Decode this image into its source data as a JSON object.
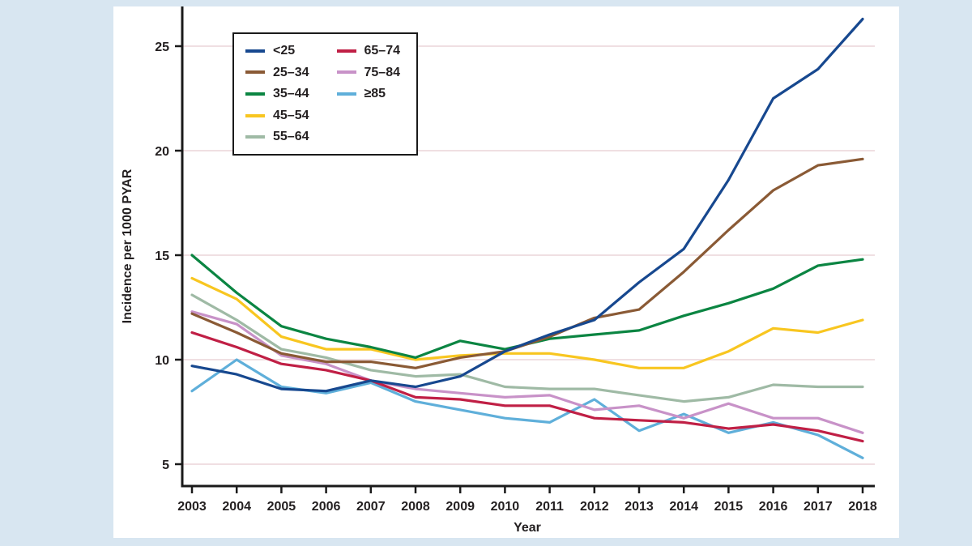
{
  "colors": {
    "background": "#d8e6f1",
    "figure_bg": "#ffffff",
    "gridline": "#f0dfe2",
    "axis": "#1a1a1a",
    "text": "#231f20"
  },
  "chart_data": {
    "type": "line",
    "title": "",
    "xlabel": "Year",
    "ylabel": "Incidence per 1000 PYAR",
    "x": [
      2003,
      2004,
      2005,
      2006,
      2007,
      2008,
      2009,
      2010,
      2011,
      2012,
      2013,
      2014,
      2015,
      2016,
      2017,
      2018
    ],
    "ylim": [
      5,
      26.5
    ],
    "yticks": [
      5,
      10,
      15,
      20,
      25
    ],
    "grid": "horizontal",
    "legend_position": "top-left-inside",
    "series": [
      {
        "name": "<25",
        "color": "#17488f",
        "values": [
          9.7,
          9.3,
          8.6,
          8.5,
          9.0,
          8.7,
          9.2,
          10.4,
          11.2,
          11.9,
          13.7,
          15.3,
          18.6,
          22.5,
          23.9,
          26.3
        ]
      },
      {
        "name": "25–34",
        "color": "#8a5a35",
        "values": [
          12.2,
          11.3,
          10.3,
          9.9,
          9.9,
          9.6,
          10.1,
          10.4,
          11.1,
          12.0,
          12.4,
          14.2,
          16.2,
          18.1,
          19.3,
          19.6
        ]
      },
      {
        "name": "35–44",
        "color": "#0b8542",
        "values": [
          15.0,
          13.2,
          11.6,
          11.0,
          10.6,
          10.1,
          10.9,
          10.5,
          11.0,
          11.2,
          11.4,
          12.1,
          12.7,
          13.4,
          14.5,
          14.8
        ]
      },
      {
        "name": "45–54",
        "color": "#f8c620",
        "values": [
          13.9,
          12.9,
          11.1,
          10.5,
          10.5,
          10.0,
          10.2,
          10.3,
          10.3,
          10.0,
          9.6,
          9.6,
          10.4,
          11.5,
          11.3,
          11.9
        ]
      },
      {
        "name": "55–64",
        "color": "#9fbaa5",
        "values": [
          13.1,
          11.9,
          10.5,
          10.1,
          9.5,
          9.2,
          9.3,
          8.7,
          8.6,
          8.6,
          8.3,
          8.0,
          8.2,
          8.8,
          8.7,
          8.7
        ]
      },
      {
        "name": "65–74",
        "color": "#c01f45",
        "values": [
          11.3,
          10.6,
          9.8,
          9.5,
          9.0,
          8.2,
          8.1,
          7.8,
          7.8,
          7.2,
          7.1,
          7.0,
          6.7,
          6.9,
          6.6,
          6.1
        ]
      },
      {
        "name": "75–84",
        "color": "#c892c8",
        "values": [
          12.3,
          11.7,
          10.2,
          9.8,
          9.0,
          8.6,
          8.4,
          8.2,
          8.3,
          7.6,
          7.8,
          7.2,
          7.9,
          7.2,
          7.2,
          6.5
        ]
      },
      {
        "name": "≥85",
        "color": "#5fafda",
        "values": [
          8.5,
          10.0,
          8.7,
          8.4,
          8.9,
          8.0,
          7.6,
          7.2,
          7.0,
          8.1,
          6.6,
          7.4,
          6.5,
          7.0,
          6.4,
          5.3
        ]
      }
    ]
  }
}
